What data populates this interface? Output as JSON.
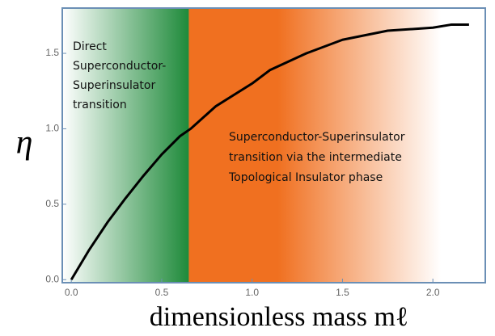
{
  "chart_data": {
    "type": "line",
    "xlabel": "dimensionless mass mℓ",
    "ylabel": "η",
    "x": [
      0,
      0.1,
      0.2,
      0.3,
      0.4,
      0.5,
      0.6,
      0.66,
      0.8,
      1.0,
      1.1,
      1.3,
      1.5,
      1.75,
      2.0,
      2.1,
      2.2
    ],
    "series": [
      {
        "color": "#000000",
        "values": [
          0,
          0.2,
          0.38,
          0.54,
          0.69,
          0.83,
          0.95,
          1.0,
          1.15,
          1.3,
          1.39,
          1.5,
          1.59,
          1.65,
          1.67,
          1.69,
          1.69
        ]
      }
    ],
    "regions": [
      {
        "lines": [
          "Direct",
          "Superconductor-",
          "Superinsulator",
          "transition"
        ],
        "x": [
          -0.05,
          0.65
        ],
        "color": "#1e8a3a"
      },
      {
        "lines": [
          "Superconductor-Superinsulator",
          "transition via the intermediate",
          "Topological Insulator phase"
        ],
        "x": [
          0.65,
          2.29
        ],
        "color": "#f07020"
      }
    ],
    "xlim": [
      -0.05,
      2.29
    ],
    "ylim": [
      -0.02,
      1.8
    ],
    "xticks": [
      {
        "value": 0,
        "label": "0.0"
      },
      {
        "value": 0.5,
        "label": "0.5"
      },
      {
        "value": 1,
        "label": "1.0"
      },
      {
        "value": 1.5,
        "label": "1.5"
      },
      {
        "value": 2,
        "label": "2.0"
      }
    ],
    "yticks": [
      {
        "value": 0,
        "label": "0.0"
      },
      {
        "value": 0.5,
        "label": "0.5"
      },
      {
        "value": 1,
        "label": "1.0"
      },
      {
        "value": 1.5,
        "label": "1.5"
      }
    ],
    "grid": false
  }
}
